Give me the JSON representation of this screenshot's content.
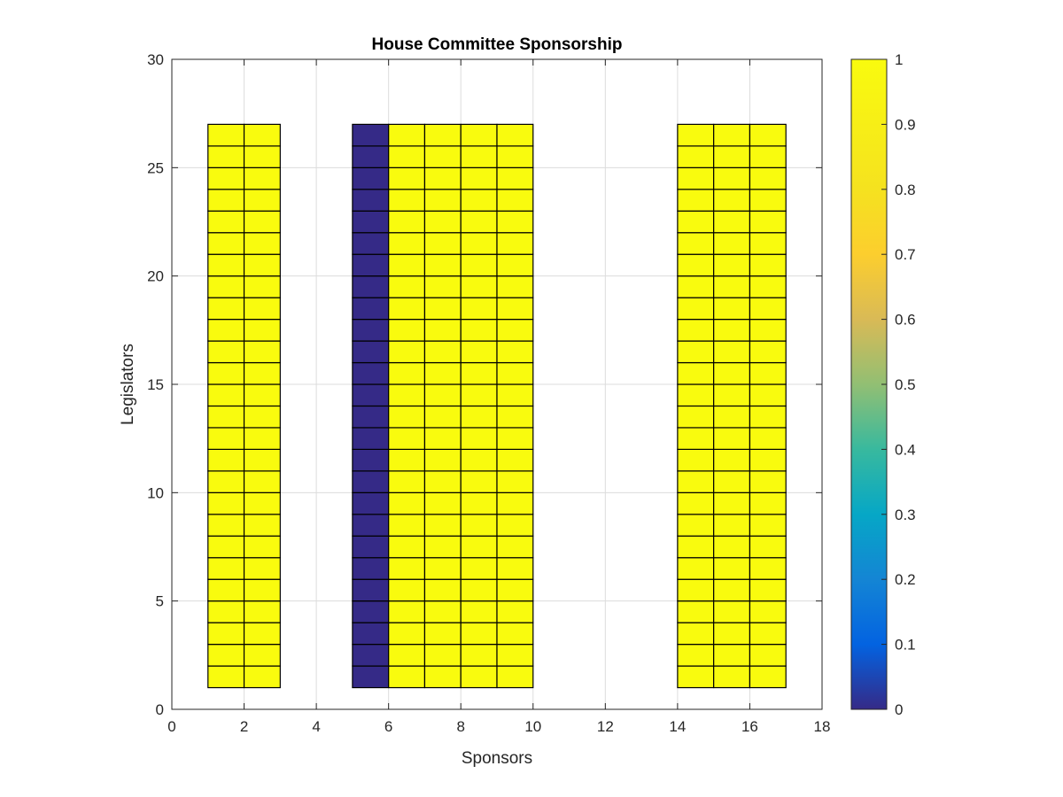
{
  "chart_data": {
    "type": "heatmap",
    "title": "House Committee Sponsorship",
    "xlabel": "Sponsors",
    "ylabel": "Legislators",
    "xlim": [
      0,
      18
    ],
    "ylim": [
      0,
      30
    ],
    "xticks": [
      0,
      2,
      4,
      6,
      8,
      10,
      12,
      14,
      16,
      18
    ],
    "yticks": [
      0,
      5,
      10,
      15,
      20,
      25,
      30
    ],
    "grid": true,
    "colorbar": {
      "ticks": [
        0,
        0.1,
        0.2,
        0.3,
        0.4,
        0.5,
        0.6,
        0.7,
        0.8,
        0.9,
        1
      ],
      "tick_labels": [
        "0",
        "0.1",
        "0.2",
        "0.3",
        "0.4",
        "0.5",
        "0.6",
        "0.7",
        "0.8",
        "0.9",
        "1"
      ],
      "colormap": "parula",
      "clim": [
        0,
        1
      ]
    },
    "rows": {
      "y_start": 1,
      "y_end": 27
    },
    "columns": [
      {
        "x": 1,
        "value": 1
      },
      {
        "x": 2,
        "value": 1
      },
      {
        "x": 5,
        "value": 0
      },
      {
        "x": 6,
        "value": 1
      },
      {
        "x": 7,
        "value": 1
      },
      {
        "x": 8,
        "value": 1
      },
      {
        "x": 9,
        "value": 1
      },
      {
        "x": 14,
        "value": 1
      },
      {
        "x": 15,
        "value": 1
      },
      {
        "x": 16,
        "value": 1
      }
    ]
  }
}
